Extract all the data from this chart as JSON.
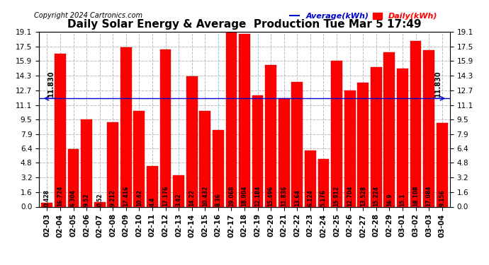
{
  "title": "Daily Solar Energy & Average  Production Tue Mar 5 17:49",
  "copyright": "Copyright 2024 Cartronics.com",
  "legend_avg": "Average(kWh)",
  "legend_daily": "Daily(kWh)",
  "average_line": 11.83,
  "average_label": "11.830",
  "categories": [
    "02-03",
    "02-04",
    "02-05",
    "02-06",
    "02-07",
    "02-08",
    "02-09",
    "02-10",
    "02-11",
    "02-12",
    "02-13",
    "02-14",
    "02-15",
    "02-16",
    "02-17",
    "02-18",
    "02-19",
    "02-20",
    "02-21",
    "02-22",
    "02-23",
    "02-24",
    "02-25",
    "02-26",
    "02-27",
    "02-28",
    "02-29",
    "03-01",
    "03-02",
    "03-03",
    "03-04"
  ],
  "values": [
    0.428,
    16.724,
    6.304,
    9.52,
    0.52,
    9.212,
    17.416,
    10.42,
    4.4,
    17.176,
    3.42,
    14.22,
    10.432,
    8.36,
    19.068,
    18.904,
    12.184,
    15.496,
    11.836,
    13.64,
    6.124,
    5.176,
    15.912,
    12.704,
    13.528,
    15.224,
    16.9,
    15.1,
    18.108,
    17.084,
    9.156
  ],
  "bar_color": "#ff0000",
  "bar_edge_color": "#cc0000",
  "avg_line_color": "#0000cc",
  "background_color": "#ffffff",
  "grid_color": "#bbbbbb",
  "ylim": [
    0,
    19.1
  ],
  "yticks": [
    0.0,
    1.6,
    3.2,
    4.8,
    6.4,
    7.9,
    9.5,
    11.1,
    12.7,
    14.3,
    15.9,
    17.5,
    19.1
  ],
  "title_fontsize": 11,
  "copyright_fontsize": 7,
  "bar_label_fontsize": 5.5,
  "axis_label_fontsize": 7.5,
  "avg_label_fontsize": 7,
  "legend_fontsize": 8
}
